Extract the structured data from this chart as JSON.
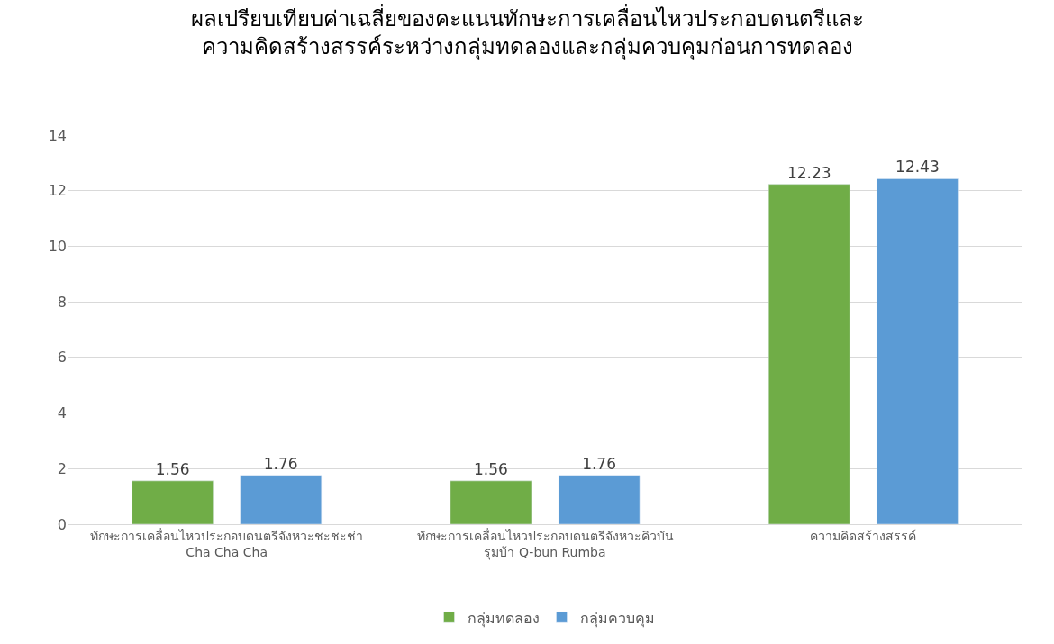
{
  "chart_data": {
    "type": "bar",
    "title": "ผลเปรียบเทียบค่าเฉลี่ยของคะแนนทักษะการเคลื่อนไหวประกอบดนตรีและ\nความคิดสร้างสรรค์ระหว่างกลุ่มทดลองและกลุ่มควบคุมก่อนการทดลอง",
    "categories": [
      "ทักษะการเคลื่อนไหวประกอบดนตรีจังหวะชะชะช่า\nCha Cha Cha",
      "ทักษะการเคลื่อนไหวประกอบดนตรีจังหวะคิวบัน\nรุมบ้า Q-bun Rumba",
      "ความคิดสร้างสรรค์"
    ],
    "series": [
      {
        "name": "กลุ่มทดลอง",
        "color": "#70ad47",
        "values": [
          1.56,
          1.56,
          12.23
        ]
      },
      {
        "name": "กลุ่มควบคุม",
        "color": "#5b9bd5",
        "values": [
          1.76,
          1.76,
          12.43
        ]
      }
    ],
    "ylim": [
      0,
      14
    ],
    "yticks": [
      0,
      2,
      4,
      6,
      8,
      10,
      12,
      14
    ],
    "grid": "y",
    "legend": "bottom",
    "data_labels": true
  }
}
